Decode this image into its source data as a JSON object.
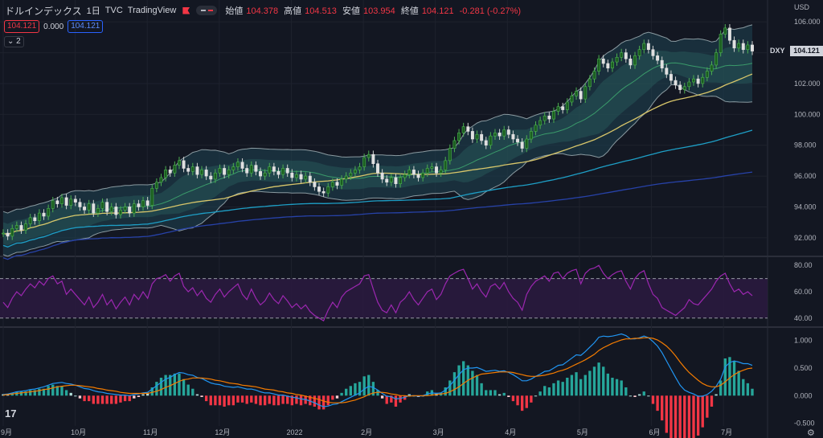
{
  "header": {
    "symbol": "ドルインデックス",
    "interval": "1日",
    "exchange": "TVC",
    "source": "TradingView",
    "open_label": "始値",
    "open": "104.378",
    "high_label": "高値",
    "high": "104.513",
    "low_label": "安値",
    "low": "103.954",
    "close_label": "終値",
    "close": "104.121",
    "change": "-0.281 (-0.27%)"
  },
  "indicator_values": {
    "bb": "104.121",
    "mid": "0.000",
    "ma": "104.121"
  },
  "collapse_label": "2",
  "axis": {
    "currency": "USD"
  },
  "last_price": {
    "symbol": "DXY",
    "value": "104.121"
  },
  "colors": {
    "background": "#131722",
    "up": "#26a69a",
    "down": "#f23645",
    "bb_fill": "#1f4452",
    "sma50": "#d8c66a",
    "sma100": "#1e9fc6",
    "sma200": "#2742a8",
    "rsi_line": "#9c27b0",
    "macd": "#2196f3",
    "signal": "#f57c00"
  },
  "icons": {
    "logo": "tradingview-logo-icon",
    "settings": "gear-icon"
  },
  "chart_data": [
    {
      "type": "candlestick",
      "title": "",
      "ylim": [
        91,
        107
      ],
      "y_ticks": [
        "92.000",
        "94.000",
        "96.000",
        "98.000",
        "100.000",
        "102.000",
        "104.000",
        "106.000"
      ],
      "x_ticks": [
        "9月",
        "10月",
        "11月",
        "12月",
        "2022",
        "2月",
        "3月",
        "4月",
        "5月",
        "6月",
        "7月"
      ],
      "close": [
        92.3,
        92.1,
        92.6,
        92.8,
        92.5,
        92.9,
        93.3,
        93.1,
        93.6,
        93.4,
        93.9,
        94.4,
        94.2,
        94.6,
        94.1,
        94.5,
        94.3,
        94.0,
        93.8,
        94.2,
        93.6,
        93.9,
        94.3,
        93.7,
        94.0,
        93.5,
        93.8,
        94.0,
        93.6,
        94.2,
        94.0,
        94.4,
        94.1,
        95.2,
        95.6,
        95.9,
        96.4,
        96.2,
        96.7,
        97.0,
        96.5,
        96.3,
        96.6,
        96.1,
        96.4,
        96.0,
        95.8,
        96.2,
        96.5,
        96.1,
        96.4,
        96.6,
        96.9,
        96.5,
        96.2,
        96.7,
        96.3,
        96.0,
        96.2,
        96.6,
        96.3,
        96.1,
        96.5,
        96.2,
        95.9,
        96.1,
        95.8,
        96.0,
        95.6,
        95.3,
        95.0,
        94.9,
        95.3,
        95.6,
        95.4,
        95.8,
        96.0,
        96.2,
        96.4,
        96.6,
        97.2,
        97.4,
        96.8,
        96.2,
        95.8,
        95.6,
        95.9,
        95.5,
        95.9,
        96.1,
        96.4,
        96.1,
        95.9,
        96.2,
        96.5,
        96.6,
        96.2,
        96.4,
        97.0,
        97.8,
        98.3,
        98.8,
        99.2,
        98.9,
        98.4,
        98.7,
        98.3,
        98.0,
        98.6,
        98.8,
        98.6,
        99.0,
        98.7,
        98.4,
        98.2,
        97.8,
        98.4,
        98.9,
        99.3,
        99.6,
        99.9,
        99.7,
        100.2,
        100.5,
        100.3,
        100.8,
        101.2,
        101.5,
        101.0,
        101.8,
        102.3,
        102.8,
        103.6,
        103.3,
        103.0,
        103.4,
        103.7,
        104.0,
        103.6,
        103.2,
        103.8,
        104.2,
        104.6,
        104.2,
        103.8,
        103.5,
        103.0,
        102.6,
        102.2,
        101.9,
        101.6,
        101.8,
        102.1,
        102.3,
        102.0,
        102.4,
        102.8,
        103.2,
        104.0,
        105.2,
        105.6,
        104.8,
        104.3,
        104.6,
        104.2,
        104.5,
        104.1
      ]
    },
    {
      "type": "line",
      "name": "RSI",
      "ylim": [
        35,
        85
      ],
      "y_ticks": [
        "40.00",
        "60.00",
        "80.00"
      ],
      "band": [
        40,
        70
      ],
      "values": [
        52,
        48,
        55,
        60,
        57,
        62,
        66,
        63,
        68,
        65,
        70,
        72,
        66,
        68,
        58,
        62,
        58,
        54,
        50,
        56,
        48,
        52,
        58,
        50,
        54,
        47,
        52,
        56,
        50,
        58,
        54,
        60,
        55,
        66,
        70,
        71,
        73,
        68,
        72,
        74,
        64,
        60,
        63,
        57,
        61,
        55,
        52,
        58,
        62,
        56,
        60,
        63,
        66,
        58,
        54,
        62,
        55,
        50,
        53,
        59,
        54,
        51,
        57,
        53,
        48,
        51,
        47,
        50,
        45,
        42,
        40,
        38,
        46,
        52,
        48,
        56,
        60,
        62,
        64,
        66,
        72,
        73,
        62,
        52,
        46,
        44,
        50,
        44,
        52,
        55,
        60,
        54,
        50,
        55,
        60,
        62,
        54,
        58,
        66,
        72,
        74,
        76,
        77,
        70,
        62,
        66,
        60,
        56,
        64,
        66,
        62,
        67,
        60,
        55,
        52,
        46,
        58,
        64,
        68,
        70,
        72,
        68,
        74,
        75,
        70,
        74,
        76,
        77,
        66,
        74,
        77,
        78,
        80,
        74,
        70,
        73,
        75,
        76,
        68,
        62,
        70,
        74,
        76,
        66,
        58,
        55,
        48,
        46,
        44,
        42,
        45,
        48,
        54,
        51,
        50,
        54,
        58,
        62,
        68,
        72,
        74,
        66,
        60,
        62,
        58,
        60,
        57
      ]
    },
    {
      "type": "bar+line",
      "name": "MACD",
      "ylim": [
        -0.55,
        1.2
      ],
      "y_ticks": [
        "-0.500",
        "0.000",
        "0.500",
        "1.000"
      ],
      "macd": [
        0.02,
        0.03,
        0.05,
        0.07,
        0.08,
        0.09,
        0.11,
        0.12,
        0.14,
        0.16,
        0.19,
        0.22,
        0.23,
        0.24,
        0.22,
        0.21,
        0.19,
        0.16,
        0.13,
        0.12,
        0.09,
        0.07,
        0.06,
        0.04,
        0.03,
        0.02,
        0.01,
        0.01,
        0.0,
        0.02,
        0.03,
        0.05,
        0.06,
        0.12,
        0.18,
        0.24,
        0.3,
        0.33,
        0.38,
        0.42,
        0.41,
        0.38,
        0.37,
        0.33,
        0.31,
        0.27,
        0.23,
        0.21,
        0.2,
        0.17,
        0.16,
        0.15,
        0.16,
        0.14,
        0.12,
        0.12,
        0.1,
        0.07,
        0.05,
        0.05,
        0.03,
        0.01,
        0.01,
        -0.01,
        -0.03,
        -0.04,
        -0.06,
        -0.07,
        -0.1,
        -0.13,
        -0.17,
        -0.2,
        -0.19,
        -0.16,
        -0.15,
        -0.11,
        -0.07,
        -0.03,
        0.01,
        0.05,
        0.12,
        0.17,
        0.15,
        0.1,
        0.04,
        -0.01,
        -0.02,
        -0.06,
        -0.05,
        -0.03,
        0.0,
        0.0,
        -0.01,
        0.0,
        0.03,
        0.05,
        0.04,
        0.05,
        0.1,
        0.18,
        0.28,
        0.38,
        0.47,
        0.5,
        0.5,
        0.51,
        0.48,
        0.44,
        0.45,
        0.46,
        0.44,
        0.45,
        0.42,
        0.38,
        0.33,
        0.27,
        0.27,
        0.3,
        0.35,
        0.39,
        0.44,
        0.45,
        0.5,
        0.55,
        0.56,
        0.62,
        0.68,
        0.74,
        0.73,
        0.8,
        0.88,
        0.96,
        1.06,
        1.08,
        1.07,
        1.08,
        1.1,
        1.12,
        1.09,
        1.03,
        1.03,
        1.05,
        1.08,
        1.05,
        0.98,
        0.9,
        0.78,
        0.63,
        0.48,
        0.33,
        0.19,
        0.1,
        0.06,
        0.03,
        -0.01,
        -0.01,
        0.02,
        0.08,
        0.17,
        0.3,
        0.52,
        0.6,
        0.63,
        0.61,
        0.58,
        0.58,
        0.55
      ],
      "signal": [
        0.01,
        0.02,
        0.03,
        0.04,
        0.05,
        0.06,
        0.07,
        0.08,
        0.09,
        0.11,
        0.12,
        0.14,
        0.16,
        0.17,
        0.18,
        0.19,
        0.19,
        0.18,
        0.17,
        0.16,
        0.15,
        0.13,
        0.12,
        0.1,
        0.09,
        0.08,
        0.06,
        0.05,
        0.04,
        0.04,
        0.04,
        0.04,
        0.04,
        0.06,
        0.08,
        0.11,
        0.15,
        0.18,
        0.22,
        0.26,
        0.29,
        0.3,
        0.32,
        0.32,
        0.32,
        0.31,
        0.3,
        0.28,
        0.27,
        0.25,
        0.23,
        0.22,
        0.21,
        0.19,
        0.18,
        0.17,
        0.16,
        0.14,
        0.12,
        0.11,
        0.1,
        0.08,
        0.07,
        0.05,
        0.04,
        0.02,
        0.01,
        -0.01,
        -0.03,
        -0.05,
        -0.07,
        -0.1,
        -0.12,
        -0.13,
        -0.13,
        -0.13,
        -0.12,
        -0.1,
        -0.08,
        -0.05,
        -0.02,
        0.02,
        0.05,
        0.06,
        0.06,
        0.05,
        0.03,
        0.02,
        0.0,
        0.0,
        -0.01,
        0.0,
        0.0,
        0.0,
        0.0,
        0.01,
        0.02,
        0.03,
        0.04,
        0.07,
        0.11,
        0.16,
        0.22,
        0.28,
        0.32,
        0.36,
        0.39,
        0.4,
        0.41,
        0.42,
        0.43,
        0.43,
        0.43,
        0.42,
        0.4,
        0.38,
        0.36,
        0.35,
        0.35,
        0.36,
        0.37,
        0.39,
        0.41,
        0.44,
        0.46,
        0.49,
        0.53,
        0.57,
        0.61,
        0.65,
        0.7,
        0.75,
        0.82,
        0.87,
        0.91,
        0.95,
        0.98,
        1.01,
        1.03,
        1.03,
        1.04,
        1.04,
        1.05,
        1.05,
        1.04,
        1.01,
        0.96,
        0.9,
        0.82,
        0.72,
        0.61,
        0.51,
        0.42,
        0.35,
        0.28,
        0.22,
        0.18,
        0.16,
        0.16,
        0.19,
        0.25,
        0.32,
        0.38,
        0.43,
        0.46,
        0.49,
        0.5
      ]
    }
  ]
}
